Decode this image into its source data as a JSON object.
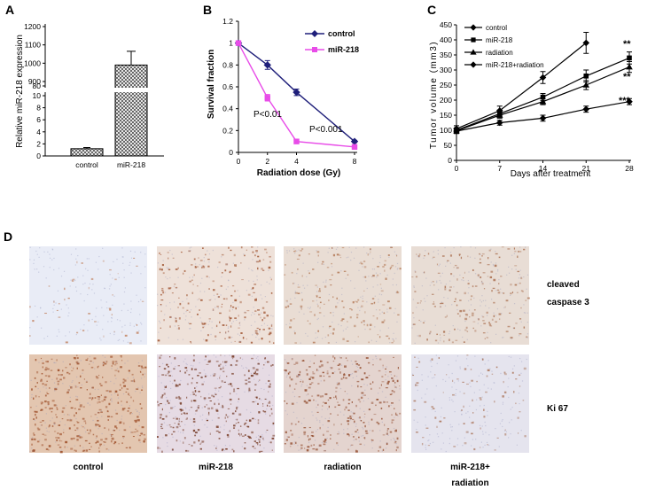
{
  "panels": {
    "a": "A",
    "b": "B",
    "c": "C",
    "d": "D"
  },
  "chart_data": [
    {
      "panel": "A",
      "type": "bar",
      "categories": [
        "control",
        "miR-218"
      ],
      "values": [
        1.2,
        990
      ],
      "errors": [
        0.2,
        75
      ],
      "ylabel": "Relative miR-218 expression",
      "broken_axis": true,
      "lower_ticks": [
        "0",
        "2",
        "4",
        "6",
        "8",
        "10"
      ],
      "upper_ticks": [
        "80",
        "900",
        "1000",
        "1100",
        "1200"
      ],
      "fill_pattern": "crosshatch"
    },
    {
      "panel": "B",
      "type": "line",
      "xlabel": "Radiation dose (Gy)",
      "ylabel": "Survival fraction",
      "x": [
        0,
        2,
        4,
        8
      ],
      "x_ticks": [
        "0",
        "2",
        "4",
        "8"
      ],
      "ylim": [
        0,
        1.2
      ],
      "y_ticks": [
        "0",
        "0.2",
        "0.4",
        "0.6",
        "0.8",
        "1",
        "1.2"
      ],
      "legend_position": "top-right",
      "series": [
        {
          "name": "control",
          "values": [
            1.0,
            0.8,
            0.55,
            0.1
          ],
          "errors": [
            0,
            0.04,
            0.03,
            0.01
          ],
          "color": "#1f1f7a",
          "marker": "diamond"
        },
        {
          "name": "miR-218",
          "values": [
            1.0,
            0.5,
            0.1,
            0.05
          ],
          "errors": [
            0,
            0.03,
            0.01,
            0.01
          ],
          "color": "#e84ce8",
          "marker": "square"
        }
      ],
      "annotations": [
        "P<0.01",
        "P<0.001"
      ]
    },
    {
      "panel": "C",
      "type": "line",
      "xlabel": "Days after treatment",
      "ylabel": "Tumor volume (mm3)",
      "x": [
        0,
        7,
        14,
        21,
        28
      ],
      "x_ticks": [
        "0",
        "7",
        "14",
        "21",
        "28"
      ],
      "ylim": [
        0,
        450
      ],
      "y_ticks": [
        "0",
        "50",
        "100",
        "150",
        "200",
        "250",
        "300",
        "350",
        "400",
        "450"
      ],
      "legend_position": "top-left",
      "series": [
        {
          "name": "control",
          "x": [
            0,
            7,
            14,
            21
          ],
          "values": [
            105,
            165,
            275,
            390
          ],
          "errors": [
            10,
            15,
            20,
            35
          ],
          "marker": "diamond"
        },
        {
          "name": "miR-218",
          "x": [
            0,
            7,
            14,
            21,
            28
          ],
          "values": [
            100,
            155,
            210,
            280,
            340
          ],
          "errors": [
            8,
            12,
            12,
            20,
            20
          ],
          "marker": "square"
        },
        {
          "name": "radiation",
          "x": [
            0,
            7,
            14,
            21,
            28
          ],
          "values": [
            98,
            150,
            195,
            250,
            310
          ],
          "errors": [
            8,
            10,
            10,
            15,
            18
          ],
          "marker": "triangle"
        },
        {
          "name": "miR-218+radiation",
          "x": [
            0,
            7,
            14,
            21,
            28
          ],
          "values": [
            97,
            125,
            140,
            170,
            195
          ],
          "errors": [
            8,
            8,
            10,
            10,
            10
          ],
          "marker": "diamond"
        }
      ],
      "significance": [
        "**",
        "**",
        "***"
      ]
    }
  ],
  "histology": {
    "columns": [
      "control",
      "miR-218",
      "radiation",
      "miR-218+"
    ],
    "columns_line2": [
      "",
      "",
      "",
      "radiation"
    ],
    "rows": [
      {
        "label_line1": "cleaved",
        "label_line2": "caspase 3",
        "base": [
          "#e9ecf6",
          "#eee1d9",
          "#e9ddd4",
          "#e8ddd5"
        ],
        "spot": [
          "#c0805c",
          "#9a4a25",
          "#b07450",
          "#a86c4c"
        ],
        "density": [
          0.06,
          0.28,
          0.22,
          0.25
        ]
      },
      {
        "label_line1": "Ki 67",
        "label_line2": "",
        "base": [
          "#e3c6b0",
          "#e6dbe4",
          "#e4d4cf",
          "#e5e4ee"
        ],
        "spot": [
          "#9b4a24",
          "#6b2b12",
          "#8c4222",
          "#a56a4c"
        ],
        "density": [
          0.5,
          0.45,
          0.4,
          0.12
        ]
      }
    ]
  }
}
